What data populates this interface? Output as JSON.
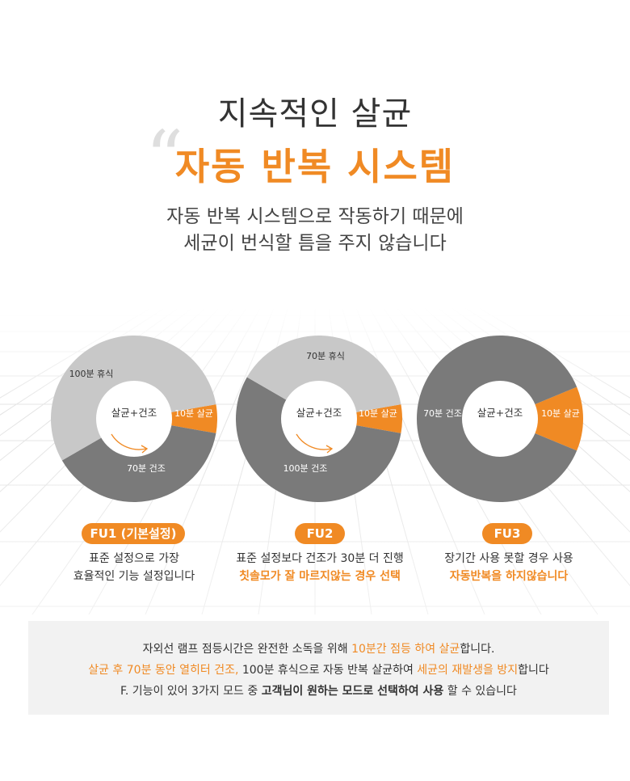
{
  "header": {
    "quote_mark": "“",
    "title_line1": "지속적인 살균",
    "title_line2": "자동 반복 시스템",
    "subtitle_line1": "자동 반복 시스템으로 작동하기 때문에",
    "subtitle_line2": "세균이 번식할 틈을 주지 않습니다"
  },
  "colors": {
    "accent": "#f08a24",
    "gray_light": "#c8c8c8",
    "gray_dark": "#7a7a7a"
  },
  "modes": [
    {
      "center_label": "살균+건조",
      "segments": [
        {
          "label": "10분 살균",
          "minutes": 10,
          "color": "#f08a24"
        },
        {
          "label": "70분 건조",
          "minutes": 70,
          "color": "#7a7a7a"
        },
        {
          "label": "100분 휴식",
          "minutes": 100,
          "color": "#c8c8c8"
        }
      ],
      "badge": "FU1 (기본설정)",
      "desc_line1": "표준 설정으로 가장",
      "desc_line2": "효율적인 기능 설정입니다"
    },
    {
      "center_label": "살균+건조",
      "segments": [
        {
          "label": "10분 살균",
          "minutes": 10,
          "color": "#f08a24"
        },
        {
          "label": "100분 건조",
          "minutes": 100,
          "color": "#7a7a7a"
        },
        {
          "label": "70분 휴식",
          "minutes": 70,
          "color": "#c8c8c8"
        }
      ],
      "badge": "FU2",
      "desc_line1": "표준 설정보다 건조가 30분 더 진행",
      "desc_line2": "칫솔모가 잘 마르지않는 경우 선택"
    },
    {
      "center_label": "살균+건조",
      "segments": [
        {
          "label": "10분 살균",
          "minutes": 10,
          "color": "#f08a24"
        },
        {
          "label": "70분 건조",
          "minutes": 70,
          "color": "#7a7a7a"
        }
      ],
      "badge": "FU3",
      "desc_line1": "장기간 사용 못할 경우 사용",
      "desc_line2": "자동반복을 하지않습니다"
    }
  ],
  "notice": {
    "line1_a": "자외선 램프 점등시간은 완전한 소독을 위해 ",
    "line1_b": "10분간 점등 하여 살균",
    "line1_c": "합니다.",
    "line2_a": "살균 후 70분 동안 열히터 건조,",
    "line2_b": " 100분 휴식으로  자동 반복 살균하여 ",
    "line2_c": "세균의 재발생을 방지",
    "line2_d": "합니다",
    "line3_a": "F. 기능이 있어 3가지 모드 중 ",
    "line3_b": "고객님이 원하는 모드로 선택하여 사용",
    "line3_c": " 할 수 있습니다"
  }
}
